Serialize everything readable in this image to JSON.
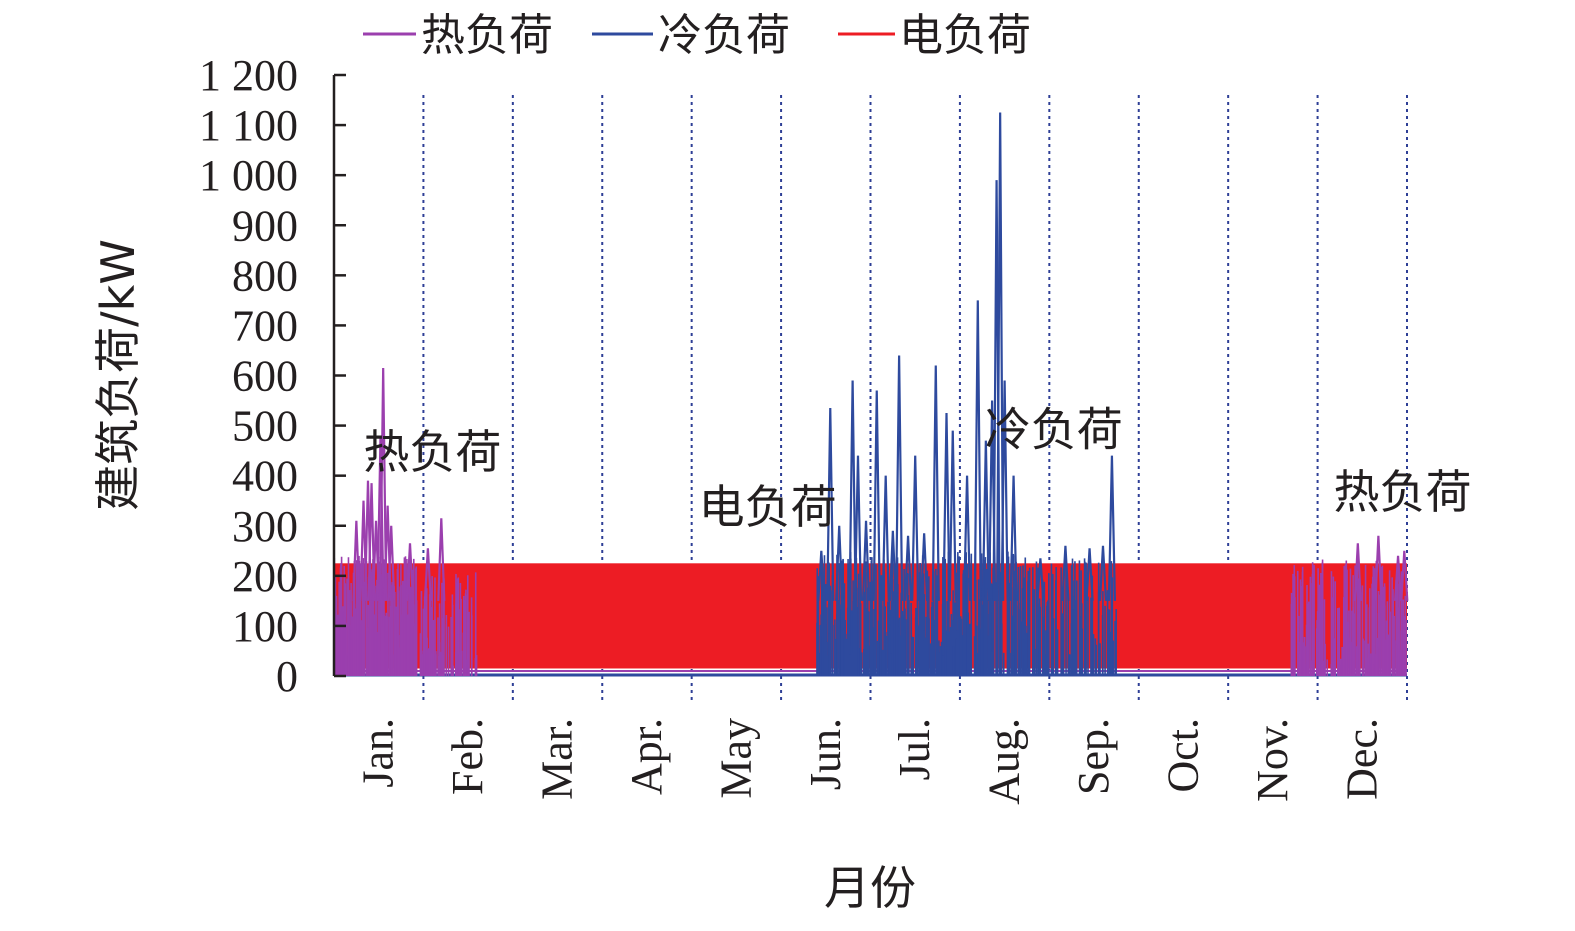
{
  "chart_data": {
    "type": "line",
    "xlabel": "月份",
    "ylabel": "建筑负荷/kW",
    "ylim": [
      0,
      1200
    ],
    "yticks": [
      0,
      100,
      200,
      300,
      400,
      500,
      600,
      700,
      800,
      900,
      1000,
      1100,
      1200
    ],
    "ytick_labels": [
      "0",
      "100",
      "200",
      "300",
      "400",
      "500",
      "600",
      "700",
      "800",
      "900",
      "1 000",
      "1 100",
      "1 200"
    ],
    "categories": [
      "Jan.",
      "Feb.",
      "Mar.",
      "Apr.",
      "May",
      "Jun.",
      "Jul.",
      "Aug.",
      "Sep.",
      "Oct.",
      "Nov.",
      "Dec."
    ],
    "month_boundaries_grid": "dotted",
    "legend_position": "top",
    "series": [
      {
        "name": "热负荷",
        "color": "#9b3fae",
        "peaks": [
          {
            "month": 1.25,
            "value": 310
          },
          {
            "month": 1.33,
            "value": 350
          },
          {
            "month": 1.38,
            "value": 390
          },
          {
            "month": 1.42,
            "value": 385
          },
          {
            "month": 1.47,
            "value": 310
          },
          {
            "month": 1.52,
            "value": 480
          },
          {
            "month": 1.55,
            "value": 615
          },
          {
            "month": 1.6,
            "value": 340
          },
          {
            "month": 1.64,
            "value": 300
          },
          {
            "month": 1.85,
            "value": 265
          },
          {
            "month": 2.05,
            "value": 255
          },
          {
            "month": 2.2,
            "value": 315
          },
          {
            "month": 12.45,
            "value": 265
          },
          {
            "month": 12.68,
            "value": 280
          },
          {
            "month": 12.9,
            "value": 240
          },
          {
            "month": 12.97,
            "value": 250
          }
        ]
      },
      {
        "name": "冷负荷",
        "color": "#2e4a9e",
        "peaks": [
          {
            "month": 6.45,
            "value": 250
          },
          {
            "month": 6.55,
            "value": 535
          },
          {
            "month": 6.65,
            "value": 300
          },
          {
            "month": 6.8,
            "value": 590
          },
          {
            "month": 6.86,
            "value": 440
          },
          {
            "month": 6.95,
            "value": 310
          },
          {
            "month": 7.07,
            "value": 570
          },
          {
            "month": 7.17,
            "value": 400
          },
          {
            "month": 7.25,
            "value": 290
          },
          {
            "month": 7.32,
            "value": 640
          },
          {
            "month": 7.42,
            "value": 280
          },
          {
            "month": 7.5,
            "value": 440
          },
          {
            "month": 7.6,
            "value": 285
          },
          {
            "month": 7.73,
            "value": 620
          },
          {
            "month": 7.85,
            "value": 525
          },
          {
            "month": 7.92,
            "value": 490
          },
          {
            "month": 8.08,
            "value": 400
          },
          {
            "month": 8.2,
            "value": 750
          },
          {
            "month": 8.29,
            "value": 470
          },
          {
            "month": 8.36,
            "value": 550
          },
          {
            "month": 8.41,
            "value": 990
          },
          {
            "month": 8.45,
            "value": 1125
          },
          {
            "month": 8.5,
            "value": 590
          },
          {
            "month": 8.6,
            "value": 400
          },
          {
            "month": 8.9,
            "value": 235
          },
          {
            "month": 9.18,
            "value": 260
          },
          {
            "month": 9.45,
            "value": 255
          },
          {
            "month": 9.6,
            "value": 260
          },
          {
            "month": 9.7,
            "value": 440
          }
        ]
      },
      {
        "name": "电负荷",
        "color": "#ed1c24",
        "range": [
          15,
          225
        ]
      }
    ],
    "annotations": [
      {
        "text": "热负荷",
        "month": 2.1,
        "value": 415
      },
      {
        "text": "电负荷",
        "month": 5.85,
        "value": 305
      },
      {
        "text": "冷负荷",
        "month": 9.05,
        "value": 460
      },
      {
        "text": "热负荷",
        "month": 12.95,
        "value": 335
      }
    ]
  }
}
